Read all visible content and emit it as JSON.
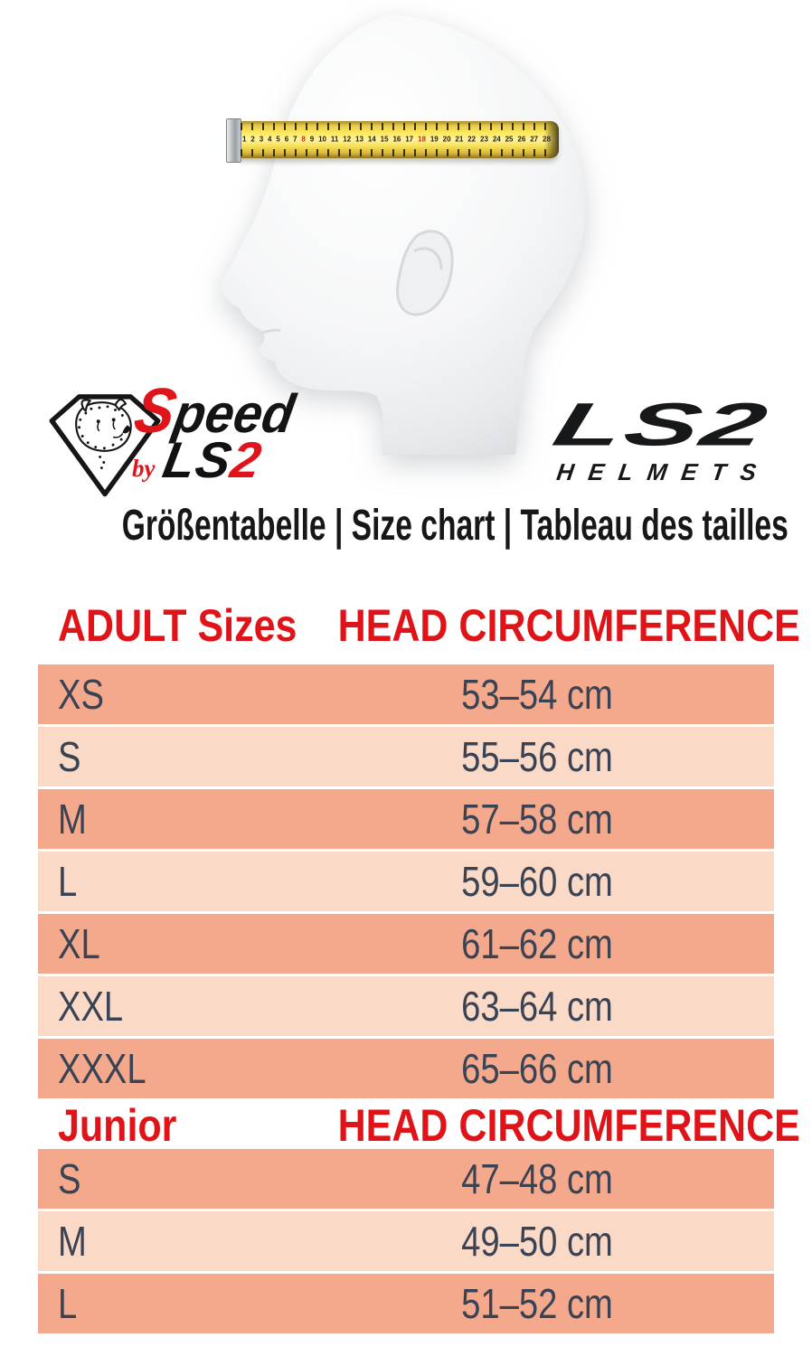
{
  "title": "Größentabelle | Size chart | Tableau des tailles",
  "logos": {
    "speed": {
      "s": "S",
      "peed": "peed",
      "by": "by",
      "ls": "LS",
      "two": "2"
    },
    "ls2": {
      "name": "LS2",
      "sub": "HELMETS"
    }
  },
  "tape": {
    "numbers": "1 2 3 4 5 6 7 8 9 10 11 12 13 14 15 16 17 18 19 20 21 22 23 24 25 26 27 28",
    "highlight": [
      "8",
      "18"
    ]
  },
  "table": {
    "adult": {
      "col1": "ADULT Sizes",
      "col2": "HEAD CIRCUMFERENCE",
      "rows": [
        {
          "size": "XS",
          "value": "53–54 cm"
        },
        {
          "size": "S",
          "value": "55–56 cm"
        },
        {
          "size": "M",
          "value": "57–58 cm"
        },
        {
          "size": "L",
          "value": "59–60 cm"
        },
        {
          "size": "XL",
          "value": "61–62 cm"
        },
        {
          "size": "XXL",
          "value": "63–64 cm"
        },
        {
          "size": "XXXL",
          "value": "65–66 cm"
        }
      ]
    },
    "junior": {
      "col1": "Junior",
      "col2": "HEAD CIRCUMFERENCE",
      "rows": [
        {
          "size": "S",
          "value": "47–48 cm"
        },
        {
          "size": "M",
          "value": "49–50 cm"
        },
        {
          "size": "L",
          "value": "51–52 cm"
        }
      ]
    }
  },
  "colors": {
    "accent_red": "#e01418",
    "row_dark": "#f4a98c",
    "row_light": "#fbd9c7",
    "row_text": "#3a4353",
    "tape_yellow": "#ffe95e"
  }
}
